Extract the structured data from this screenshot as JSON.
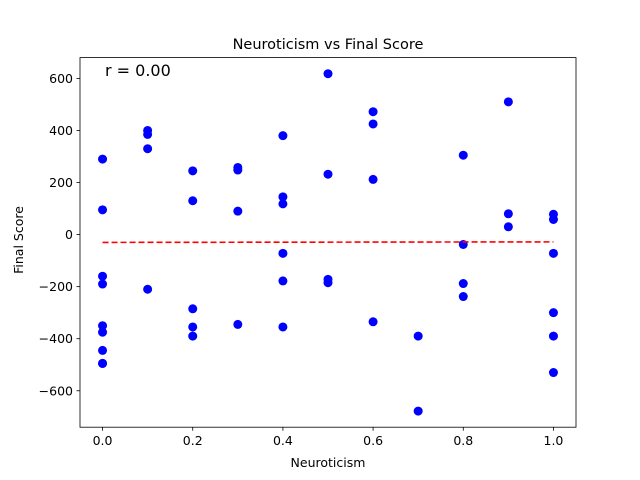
{
  "chart_data": {
    "type": "scatter",
    "title": "Neuroticism vs Final Score",
    "xlabel": "Neuroticism",
    "ylabel": "Final Score",
    "annotation": "r = 0.00",
    "xlim": [
      -0.05,
      1.05
    ],
    "ylim": [
      -740,
      680
    ],
    "x_ticks": [
      0.0,
      0.2,
      0.4,
      0.6,
      0.8,
      1.0
    ],
    "x_tick_labels": [
      "0.0",
      "0.2",
      "0.4",
      "0.6",
      "0.8",
      "1.0"
    ],
    "y_ticks": [
      -600,
      -400,
      -200,
      0,
      200,
      400,
      600
    ],
    "y_tick_labels": [
      "−600",
      "−400",
      "−200",
      "0",
      "200",
      "400",
      "600"
    ],
    "grid": false,
    "point_color": "#0000ff",
    "trend_color": "#ff0000",
    "trend_line": {
      "x": [
        0.0,
        1.0
      ],
      "y": [
        -30,
        -28
      ]
    },
    "x": [
      0.0,
      0.0,
      0.0,
      0.0,
      0.0,
      0.0,
      0.0,
      0.0,
      0.0,
      0.1,
      0.1,
      0.1,
      0.1,
      0.2,
      0.2,
      0.2,
      0.2,
      0.2,
      0.3,
      0.3,
      0.3,
      0.3,
      0.4,
      0.4,
      0.4,
      0.4,
      0.4,
      0.4,
      0.5,
      0.5,
      0.5,
      0.5,
      0.6,
      0.6,
      0.6,
      0.6,
      0.7,
      0.7,
      0.8,
      0.8,
      0.8,
      0.8,
      0.9,
      0.9,
      0.9,
      1.0,
      1.0,
      1.0,
      1.0,
      1.0,
      1.0
    ],
    "y": [
      290,
      95,
      -160,
      -190,
      -350,
      -375,
      -445,
      -495,
      -495,
      400,
      385,
      330,
      -210,
      245,
      130,
      -285,
      -355,
      -390,
      258,
      248,
      90,
      -345,
      380,
      145,
      118,
      -72,
      -178,
      -355,
      618,
      232,
      -172,
      -185,
      472,
      425,
      212,
      -335,
      -390,
      -678,
      305,
      -38,
      -188,
      -238,
      510,
      80,
      30,
      78,
      58,
      -72,
      -300,
      -390,
      -530
    ]
  }
}
